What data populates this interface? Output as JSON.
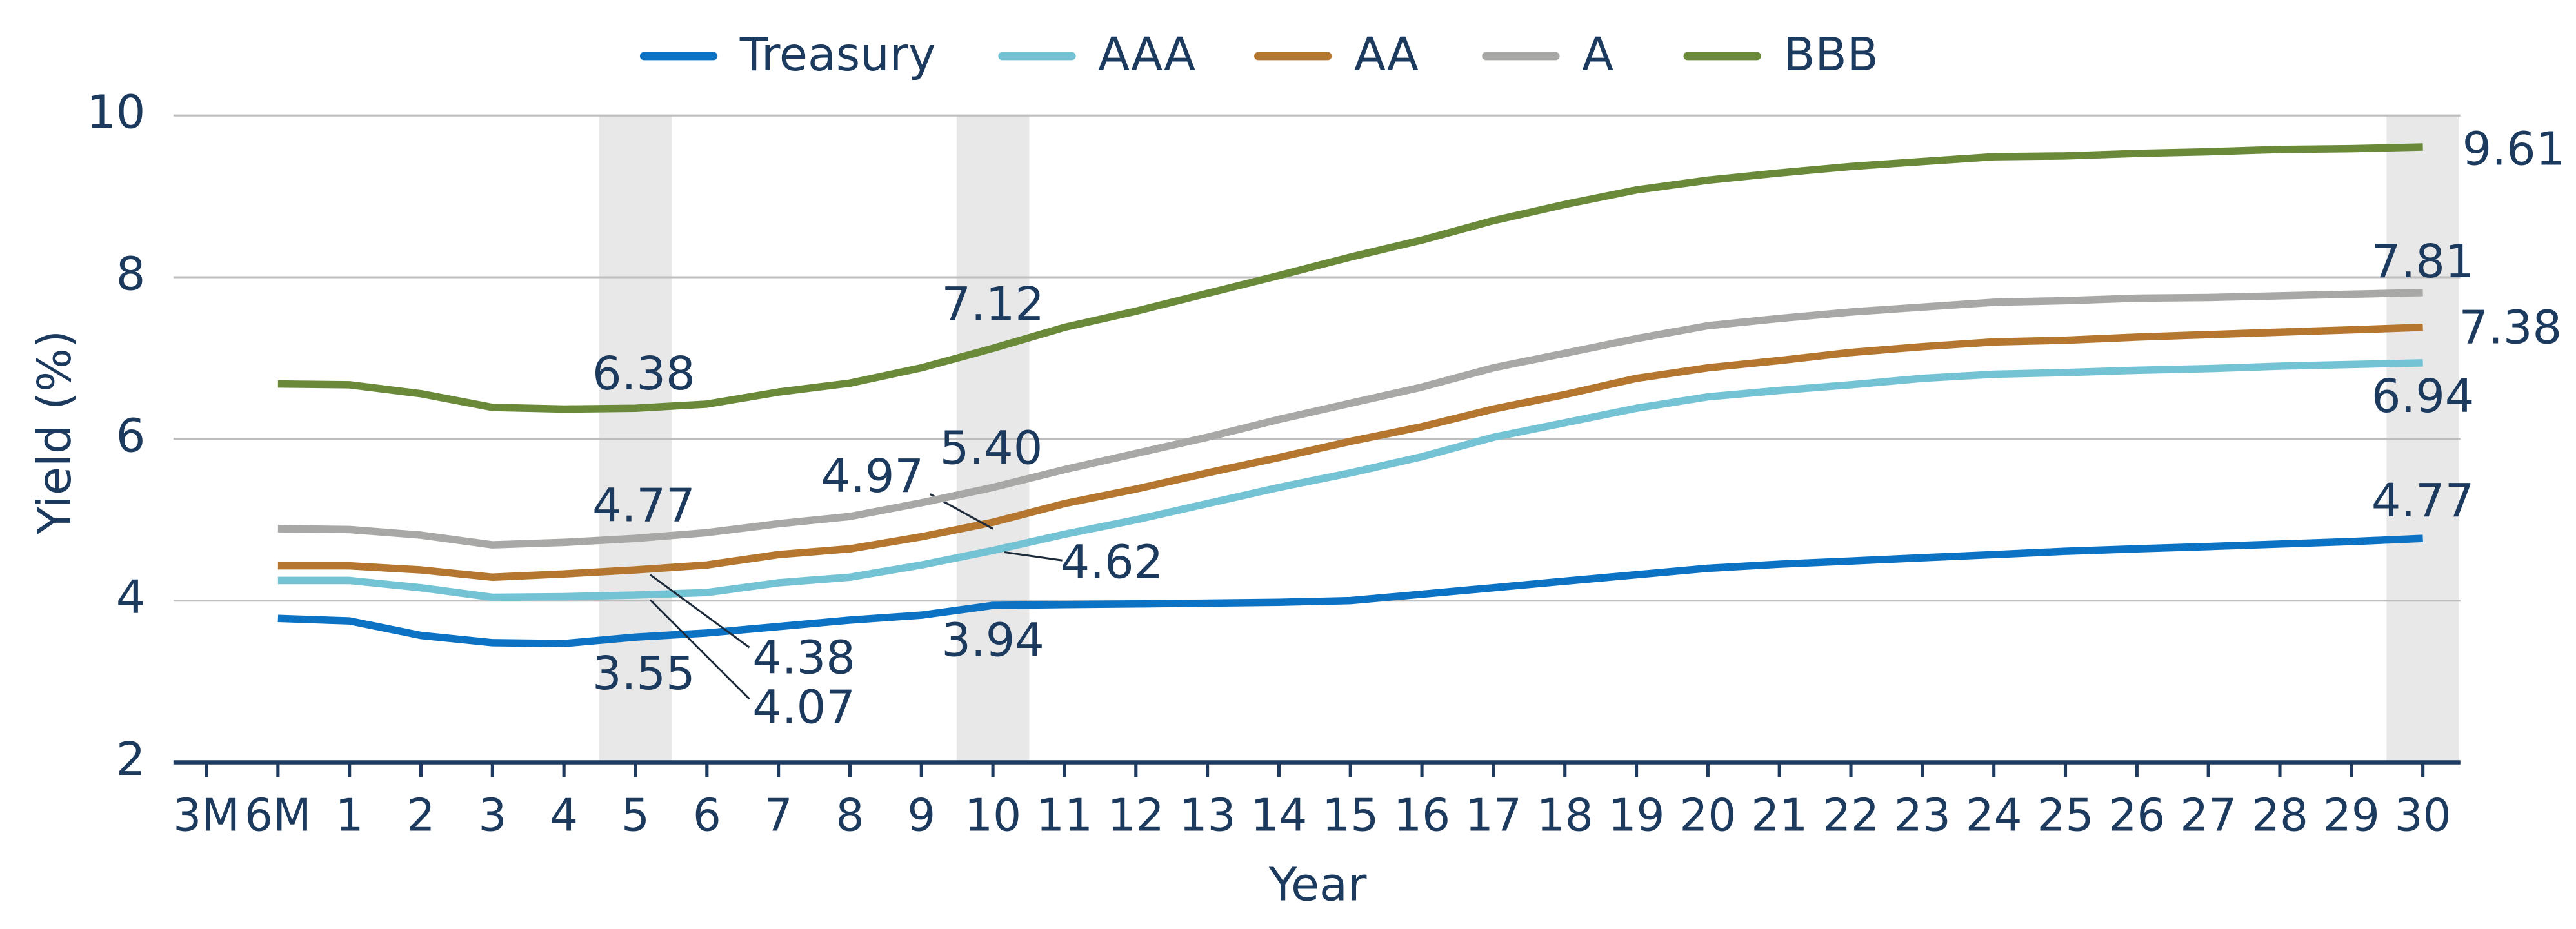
{
  "chart_data": {
    "type": "line",
    "y_label": "Yield (%)",
    "x_label": "Year",
    "categories": [
      "3M",
      "6M",
      "1",
      "2",
      "3",
      "4",
      "5",
      "6",
      "7",
      "8",
      "9",
      "10",
      "11",
      "12",
      "13",
      "14",
      "15",
      "16",
      "17",
      "18",
      "19",
      "20",
      "21",
      "22",
      "23",
      "24",
      "25",
      "26",
      "27",
      "28",
      "29",
      "30"
    ],
    "ylim": [
      2,
      10
    ],
    "yticks": [
      2,
      4,
      6,
      8,
      10
    ],
    "grid": true,
    "legend": "top",
    "series": [
      {
        "name": "Treasury",
        "color": "#0b72c4",
        "values": [
          null,
          3.78,
          3.75,
          3.57,
          3.48,
          3.47,
          3.55,
          3.6,
          3.68,
          3.76,
          3.82,
          3.94,
          3.95,
          3.96,
          3.97,
          3.98,
          4.0,
          4.08,
          4.16,
          4.24,
          4.32,
          4.4,
          4.45,
          4.49,
          4.53,
          4.57,
          4.61,
          4.64,
          4.67,
          4.7,
          4.73,
          4.77
        ],
        "value_labels": [
          null,
          null,
          null,
          null,
          null,
          null,
          "3.55",
          null,
          null,
          null,
          null,
          "3.94",
          null,
          null,
          null,
          null,
          null,
          null,
          null,
          null,
          null,
          null,
          null,
          null,
          null,
          null,
          null,
          null,
          null,
          null,
          null,
          "4.77"
        ]
      },
      {
        "name": "AAA",
        "color": "#74c3d5",
        "values": [
          null,
          4.25,
          4.25,
          4.16,
          4.04,
          4.05,
          4.07,
          4.1,
          4.22,
          4.29,
          4.44,
          4.62,
          4.82,
          5.0,
          5.2,
          5.4,
          5.58,
          5.78,
          6.02,
          6.2,
          6.38,
          6.52,
          6.6,
          6.67,
          6.75,
          6.8,
          6.82,
          6.85,
          6.87,
          6.9,
          6.92,
          6.94
        ],
        "value_labels": [
          null,
          null,
          null,
          null,
          null,
          null,
          "4.07",
          null,
          null,
          null,
          null,
          "4.62",
          null,
          null,
          null,
          null,
          null,
          null,
          null,
          null,
          null,
          null,
          null,
          null,
          null,
          null,
          null,
          null,
          null,
          null,
          null,
          "6.94"
        ]
      },
      {
        "name": "AA",
        "color": "#b5772f",
        "values": [
          null,
          4.43,
          4.43,
          4.38,
          4.29,
          4.33,
          4.38,
          4.44,
          4.57,
          4.64,
          4.79,
          4.97,
          5.2,
          5.38,
          5.58,
          5.77,
          5.97,
          6.15,
          6.37,
          6.55,
          6.75,
          6.88,
          6.97,
          7.07,
          7.14,
          7.2,
          7.22,
          7.26,
          7.29,
          7.32,
          7.35,
          7.38
        ],
        "value_labels": [
          null,
          null,
          null,
          null,
          null,
          null,
          "4.38",
          null,
          null,
          null,
          null,
          "4.97",
          null,
          null,
          null,
          null,
          null,
          null,
          null,
          null,
          null,
          null,
          null,
          null,
          null,
          null,
          null,
          null,
          null,
          null,
          null,
          "7.38"
        ]
      },
      {
        "name": "A",
        "color": "#a8a8a6",
        "values": [
          null,
          4.89,
          4.88,
          4.81,
          4.69,
          4.72,
          4.77,
          4.84,
          4.95,
          5.04,
          5.21,
          5.4,
          5.62,
          5.82,
          6.02,
          6.24,
          6.44,
          6.64,
          6.88,
          7.06,
          7.24,
          7.4,
          7.49,
          7.57,
          7.63,
          7.69,
          7.71,
          7.74,
          7.75,
          7.77,
          7.79,
          7.81
        ],
        "value_labels": [
          null,
          null,
          null,
          null,
          null,
          null,
          "4.77",
          null,
          null,
          null,
          null,
          "5.40",
          null,
          null,
          null,
          null,
          null,
          null,
          null,
          null,
          null,
          null,
          null,
          null,
          null,
          null,
          null,
          null,
          null,
          null,
          null,
          "7.81"
        ]
      },
      {
        "name": "BBB",
        "color": "#6a8a3a",
        "values": [
          null,
          6.68,
          6.67,
          6.56,
          6.39,
          6.37,
          6.38,
          6.43,
          6.58,
          6.69,
          6.88,
          7.12,
          7.38,
          7.58,
          7.8,
          8.02,
          8.25,
          8.46,
          8.7,
          8.9,
          9.08,
          9.2,
          9.29,
          9.37,
          9.43,
          9.49,
          9.5,
          9.53,
          9.55,
          9.58,
          9.59,
          9.61
        ],
        "value_labels": [
          null,
          null,
          null,
          null,
          null,
          null,
          "6.38",
          null,
          null,
          null,
          null,
          "7.12",
          null,
          null,
          null,
          null,
          null,
          null,
          null,
          null,
          null,
          null,
          null,
          null,
          null,
          null,
          null,
          null,
          null,
          null,
          null,
          "9.61"
        ]
      }
    ]
  }
}
